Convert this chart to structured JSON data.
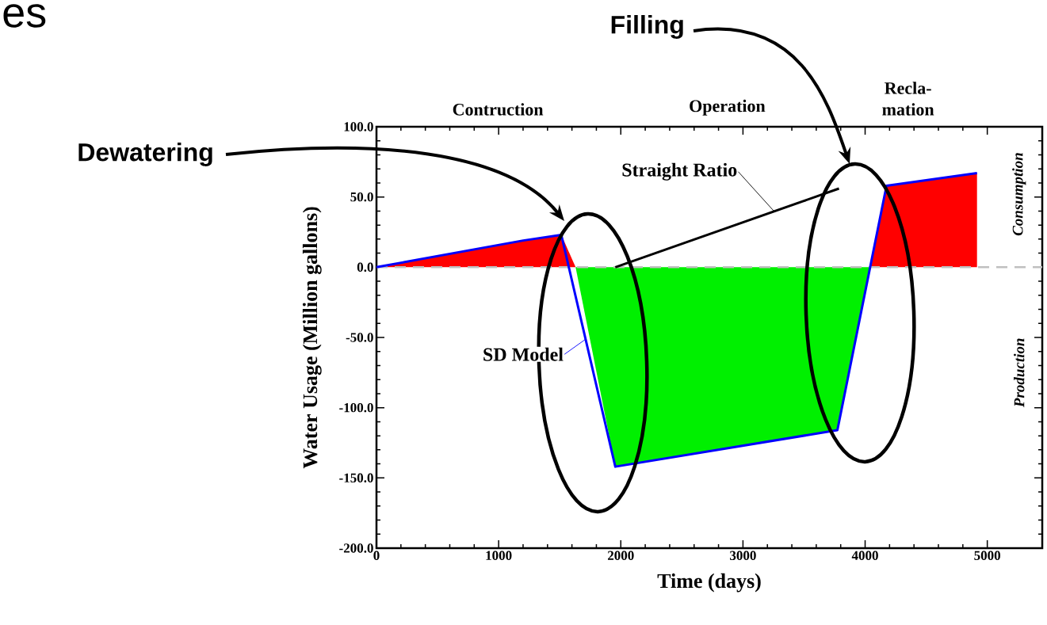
{
  "chart_data": {
    "type": "area",
    "title": "es",
    "xlabel": "Time (days)",
    "ylabel": "Water Usage (Million gallons)",
    "xlim": [
      0,
      5450
    ],
    "ylim": [
      -200,
      100
    ],
    "xticks": [
      0,
      1000,
      2000,
      3000,
      4000,
      5000
    ],
    "yticks": [
      {
        "value": -200,
        "label": "-200.0"
      },
      {
        "value": -150,
        "label": "-150.0"
      },
      {
        "value": -100,
        "label": "-100.0"
      },
      {
        "value": -50,
        "label": "-50.0"
      },
      {
        "value": 0,
        "label": "0.0"
      },
      {
        "value": 50,
        "label": "50.0"
      },
      {
        "value": 100,
        "label": "100.0"
      }
    ],
    "series": [
      {
        "color": "#ff0000",
        "x": [
          0,
          1201,
          1513,
          1630
        ],
        "values": [
          0,
          19,
          23,
          0
        ]
      },
      {
        "color": "#00f000",
        "x": [
          1630,
          1955,
          3773,
          4039
        ],
        "values": [
          0,
          -142,
          -116,
          0
        ]
      },
      {
        "color": "#ff0000",
        "x": [
          4039,
          4175,
          4916
        ],
        "values": [
          0,
          58,
          67
        ]
      },
      {
        "type": "line",
        "name": "SD Model",
        "color": "#0000ff",
        "x": [
          0,
          1201,
          1513,
          1955,
          3773,
          4175,
          4916
        ],
        "values": [
          0,
          19,
          23,
          -142,
          -116,
          58,
          67
        ]
      },
      {
        "type": "line",
        "name": "Straight Ratio",
        "color": "#000000",
        "x": [
          1955,
          3786
        ],
        "values": [
          0,
          56
        ]
      }
    ],
    "ref_lines": [
      {
        "axis": "y",
        "value": 0,
        "color": "#c0c0c0",
        "line_style": "dashed"
      }
    ],
    "annotations": [
      "Dewatering",
      "Filling",
      "Consumption",
      "Production",
      "Contruction",
      "Operation",
      "Recla-mation"
    ]
  }
}
